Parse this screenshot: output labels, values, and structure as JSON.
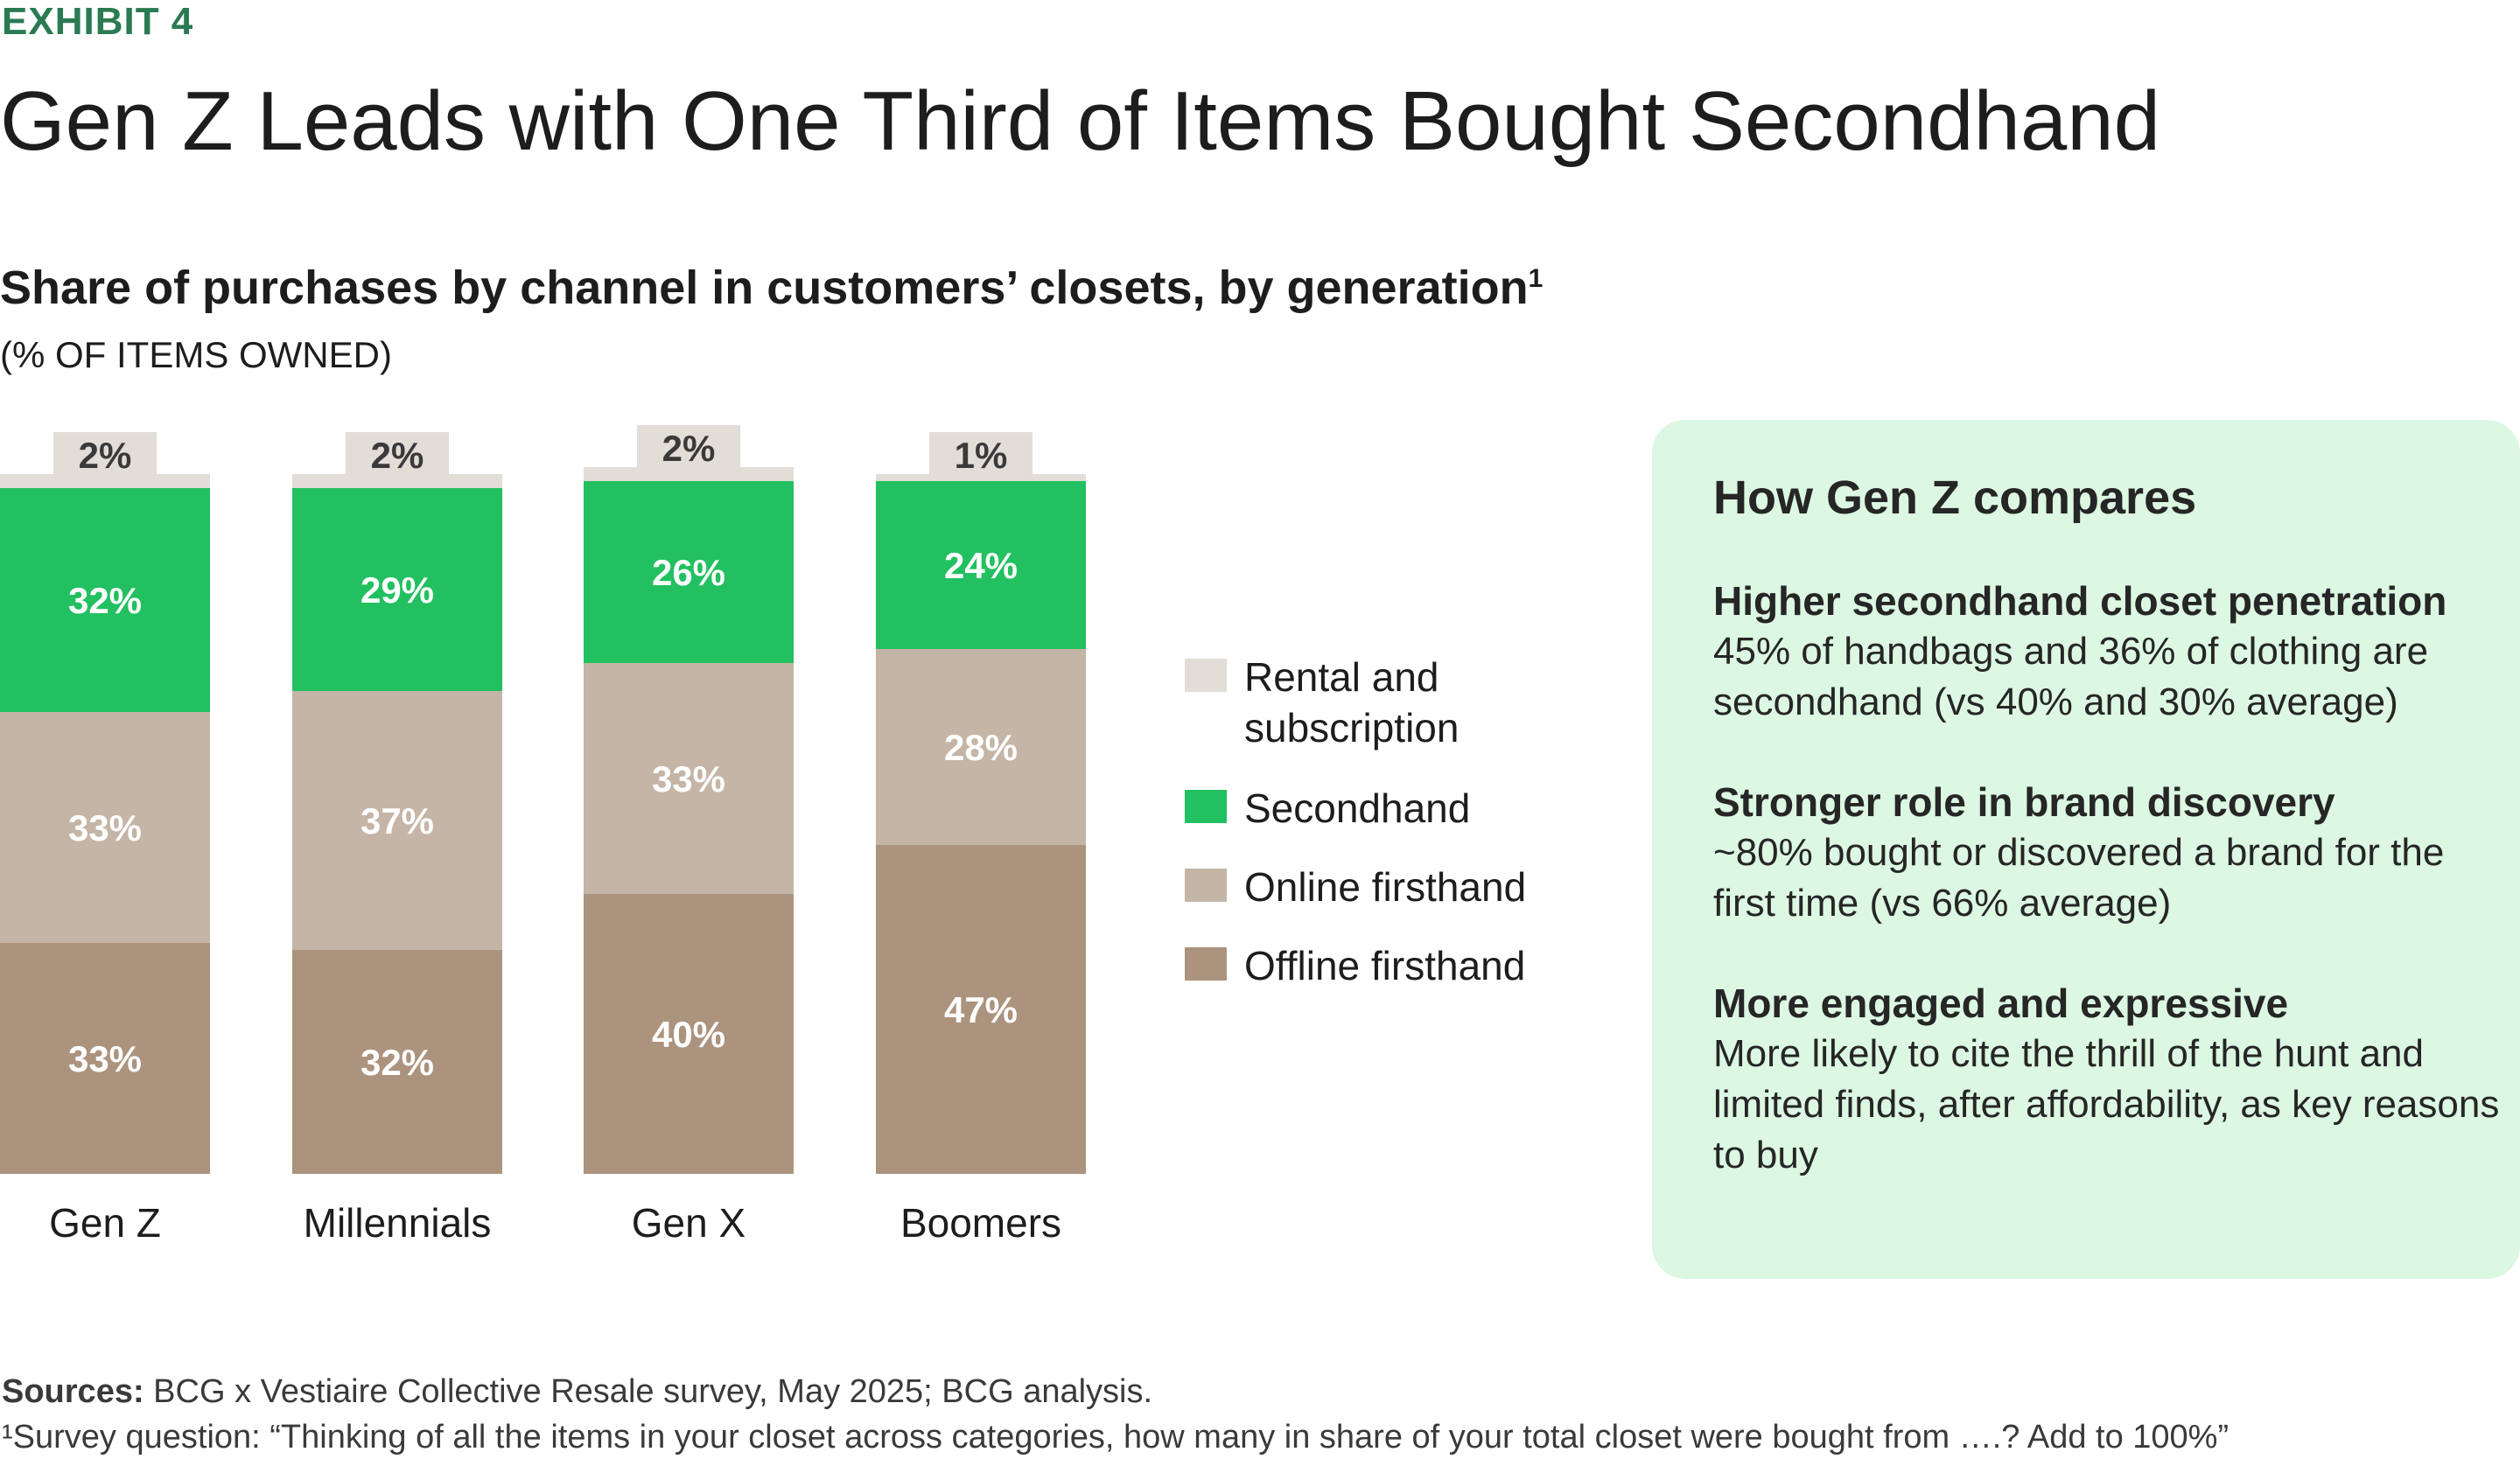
{
  "exhibit_label": "EXHIBIT 4",
  "title": "Gen Z Leads with One Third of Items Bought Secondhand",
  "subtitle": "Share of purchases by channel in customers’ closets, by generation",
  "subtitle_footnote_mark": "1",
  "unit_label": "(% OF ITEMS OWNED)",
  "colors": {
    "rental": "#e3ddd7",
    "secondhand": "#22c060",
    "online": "#c4b5a6",
    "offline": "#ab937e",
    "panel_bg": "#dcf7e2",
    "accent": "#2a7a52"
  },
  "chart_data": {
    "type": "bar",
    "stacked": true,
    "categories": [
      "Gen Z",
      "Millennials",
      "Gen X",
      "Boomers"
    ],
    "series": [
      {
        "name": "Offline firsthand",
        "values": [
          33,
          32,
          40,
          47
        ]
      },
      {
        "name": "Online firsthand",
        "values": [
          33,
          37,
          33,
          28
        ]
      },
      {
        "name": "Secondhand",
        "values": [
          32,
          29,
          26,
          24
        ]
      },
      {
        "name": "Rental and subscription",
        "values": [
          2,
          2,
          2,
          1
        ]
      }
    ],
    "ylim": [
      0,
      100
    ],
    "grid": false,
    "legend_position": "right"
  },
  "legend": [
    {
      "label": "Rental and subscription",
      "color_key": "rental"
    },
    {
      "label": "Secondhand",
      "color_key": "secondhand"
    },
    {
      "label": "Online firsthand",
      "color_key": "online"
    },
    {
      "label": "Offline firsthand",
      "color_key": "offline"
    }
  ],
  "panel": {
    "heading": "How Gen Z compares",
    "points": [
      {
        "heading": "Higher secondhand closet penetration",
        "text": "45% of handbags and 36% of clothing are secondhand (vs 40% and 30% average)"
      },
      {
        "heading": "Stronger role in brand discovery",
        "text": "~80% bought or discovered a brand for the first time (vs 66% average)"
      },
      {
        "heading": "More engaged and expressive",
        "text": "More likely to cite the thrill of the hunt and limited finds, after affordability, as key reasons to buy"
      }
    ]
  },
  "sources": {
    "label": "Sources:",
    "text": " BCG x Vestiaire Collective Resale survey, May 2025; BCG analysis."
  },
  "footnote": "¹Survey question: “Thinking of all the items in your closet across categories, how many in share of your total closet were bought from ….? Add to 100%”"
}
